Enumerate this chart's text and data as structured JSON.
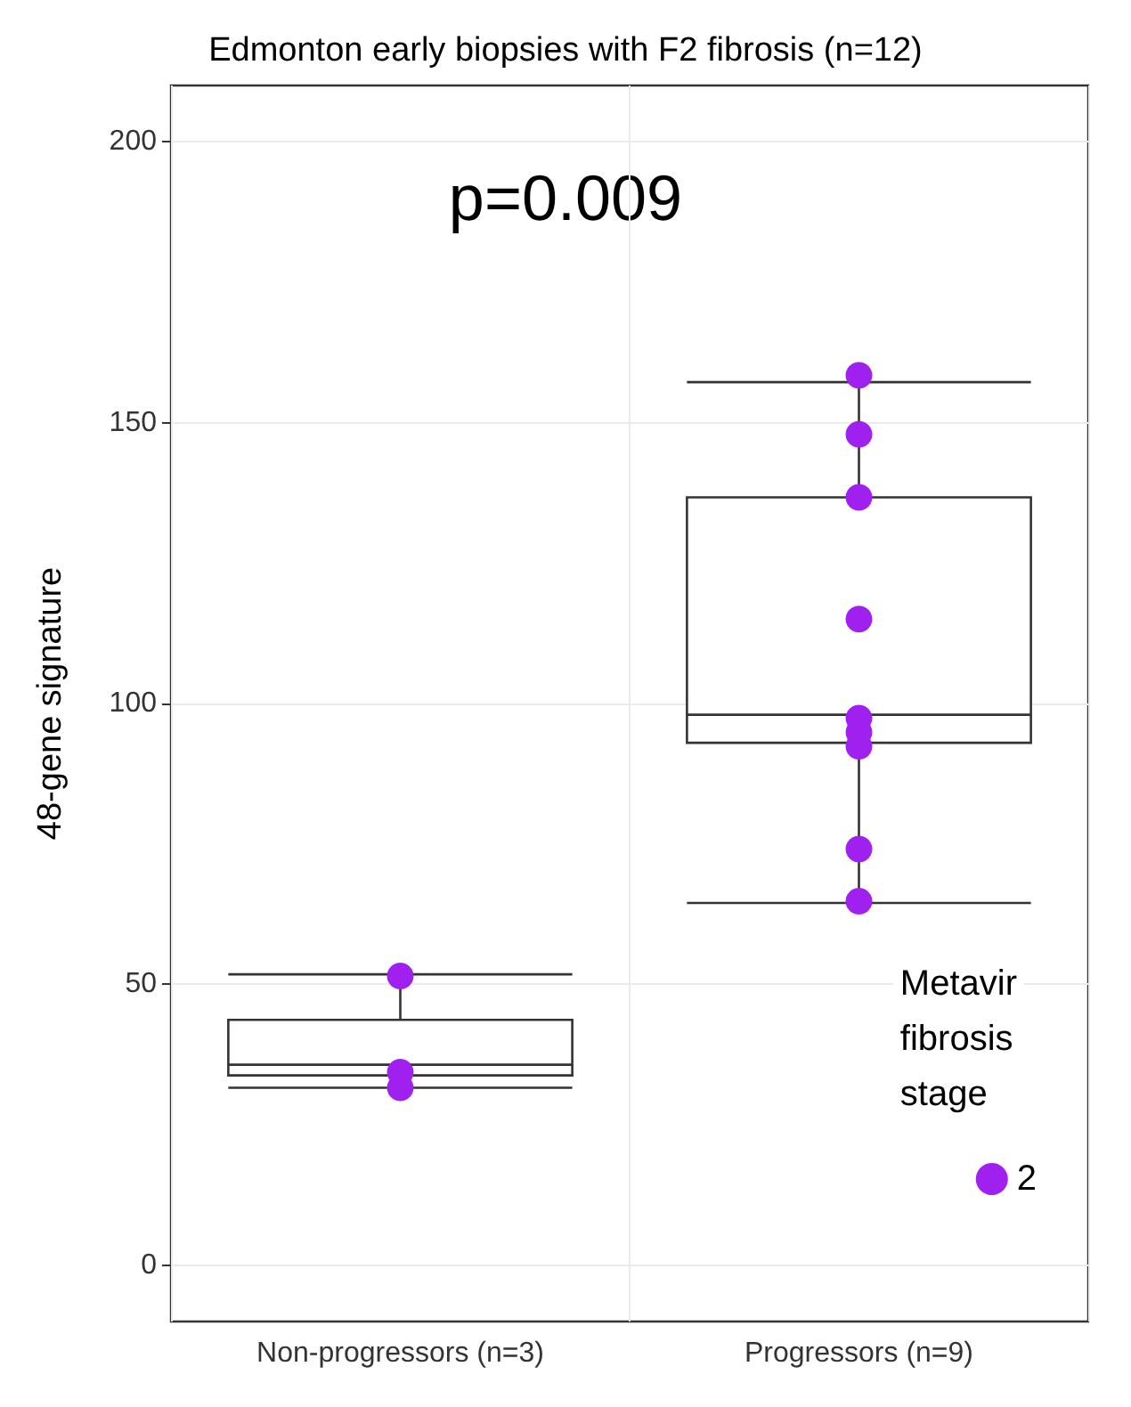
{
  "chart_data": {
    "type": "box",
    "title": "Edmonton early biopsies with F2 fibrosis (n=12)",
    "ylabel": "48-gene signature",
    "categories": [
      "Non-progressors (n=3)",
      "Progressors (n=9)"
    ],
    "boxes": [
      {
        "low": 31.6,
        "q1": 33.8,
        "median": 35.7,
        "q3": 43.7,
        "high": 51.8
      },
      {
        "low": 64.5,
        "q1": 93,
        "median": 98,
        "q3": 136.7,
        "high": 157.2
      }
    ],
    "series": [
      {
        "type": "scatter",
        "name": "2",
        "color": "#a020f0",
        "x": [
          "Non-progressors (n=3)",
          "Non-progressors (n=3)",
          "Non-progressors (n=3)",
          "Progressors (n=9)",
          "Progressors (n=9)",
          "Progressors (n=9)",
          "Progressors (n=9)",
          "Progressors (n=9)",
          "Progressors (n=9)",
          "Progressors (n=9)",
          "Progressors (n=9)",
          "Progressors (n=9)"
        ],
        "values": [
          51.5,
          34.4,
          31.6,
          158.4,
          147.9,
          136.7,
          115,
          97.4,
          94.9,
          92.4,
          74.1,
          64.8
        ]
      }
    ],
    "legend_title": "Metavir\nfibrosis\nstage",
    "legend": "bottom right",
    "marker": "circle",
    "annotations": [
      "p=0.009"
    ],
    "ylim": [
      -10,
      210
    ],
    "yticks": [
      0,
      50,
      100,
      150,
      200
    ],
    "grid": true
  }
}
